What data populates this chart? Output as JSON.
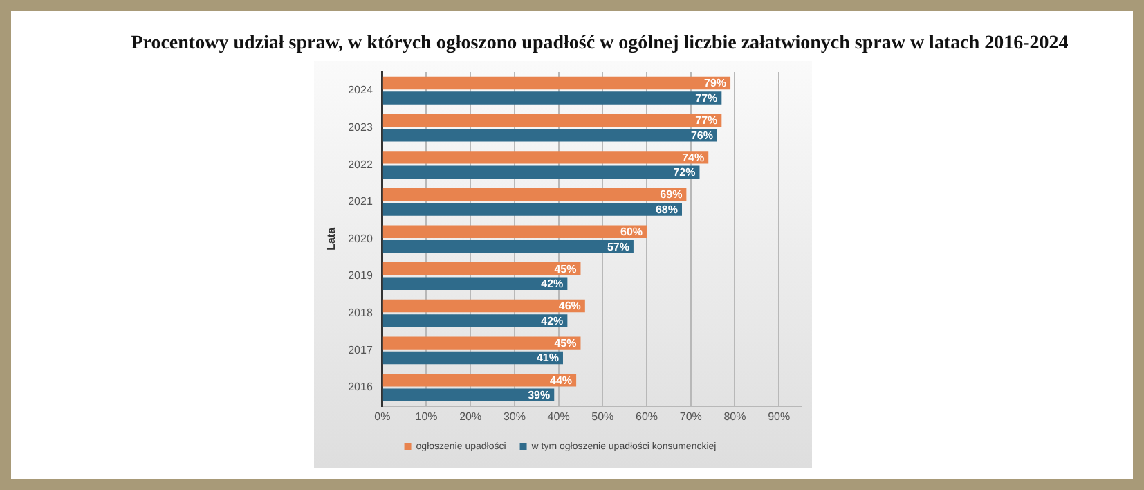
{
  "chart_data": {
    "type": "bar",
    "orientation": "horizontal",
    "title": "Procentowy udział spraw, w których ogłoszono upadłość w ogólnej liczbie załatwionych spraw w latach 2016-2024",
    "ylabel": "Lata",
    "categories": [
      "2024",
      "2023",
      "2022",
      "2021",
      "2020",
      "2019",
      "2018",
      "2017",
      "2016"
    ],
    "series": [
      {
        "name": "ogłoszenie upadłości",
        "color": "#e8834e",
        "values": [
          79,
          77,
          74,
          69,
          60,
          45,
          46,
          45,
          44
        ],
        "value_labels": [
          "79%",
          "77%",
          "74%",
          "69%",
          "60%",
          "45%",
          "46%",
          "45%",
          "44%"
        ]
      },
      {
        "name": "w tym ogłoszenie upadłości konsumenckiej",
        "color": "#2f6b8b",
        "values": [
          77,
          76,
          72,
          68,
          57,
          42,
          42,
          41,
          39
        ],
        "value_labels": [
          "77%",
          "76%",
          "72%",
          "68%",
          "57%",
          "42%",
          "42%",
          "41%",
          "39%"
        ]
      }
    ],
    "xlim": [
      0,
      95
    ],
    "xticks": [
      {
        "value": 0,
        "label": "0%"
      },
      {
        "value": 10,
        "label": "10%"
      },
      {
        "value": 20,
        "label": "20%"
      },
      {
        "value": 30,
        "label": "30%"
      },
      {
        "value": 40,
        "label": "40%"
      },
      {
        "value": 50,
        "label": "50%"
      },
      {
        "value": 60,
        "label": "60%"
      },
      {
        "value": 70,
        "label": "70%"
      },
      {
        "value": 80,
        "label": "80%"
      },
      {
        "value": 90,
        "label": "90%"
      }
    ],
    "grid": "x",
    "legend": "bottom"
  }
}
